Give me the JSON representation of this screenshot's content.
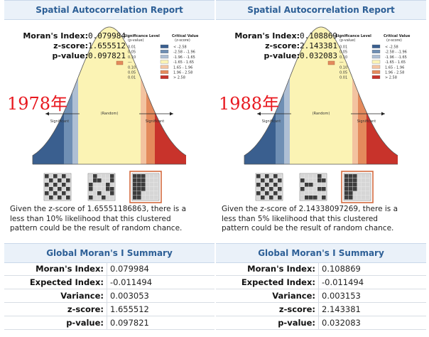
{
  "panels": [
    {
      "report_title": "Spatial Autocorrelation Report",
      "year_label": "1978年",
      "stats": [
        {
          "label": "Moran's Index:",
          "value": "0.079984"
        },
        {
          "label": "z-score:",
          "value": "1.655512"
        },
        {
          "label": "p-value:",
          "value": "0.097821"
        }
      ],
      "description_lines": [
        "Given the z-score of 1.65551186863, there is a",
        "less than 10% likelihood that this clustered",
        "pattern could be the result of random chance."
      ],
      "summary_title": "Global Moran's I Summary",
      "summary_rows": [
        {
          "label": "Moran's Index:",
          "value": "0.079984"
        },
        {
          "label": "Expected Index:",
          "value": "-0.011494"
        },
        {
          "label": "Variance:",
          "value": "0.003053"
        },
        {
          "label": "z-score:",
          "value": "1.655512"
        },
        {
          "label": "p-value:",
          "value": "0.097821"
        }
      ]
    },
    {
      "report_title": "Spatial Autocorrelation Report",
      "year_label": "1988年",
      "stats": [
        {
          "label": "Moran's Index:",
          "value": "0.108869"
        },
        {
          "label": "z-score:",
          "value": "2.143381"
        },
        {
          "label": "p-value:",
          "value": "0.032083"
        }
      ],
      "description_lines": [
        "Given the z-score of 2.14338097269, there is a",
        "less than 5% likelihood that this clustered",
        "pattern could be the result of random chance."
      ],
      "summary_title": "Global Moran's I Summary",
      "summary_rows": [
        {
          "label": "Moran's Index:",
          "value": "0.108869"
        },
        {
          "label": "Expected Index:",
          "value": "-0.011494"
        },
        {
          "label": "Variance:",
          "value": "0.003153"
        },
        {
          "label": "z-score:",
          "value": "2.143381"
        },
        {
          "label": "p-value:",
          "value": "0.032083"
        }
      ]
    }
  ],
  "figure": {
    "sig_header": [
      "Significance Level",
      "(p-value)"
    ],
    "crit_header": [
      "Critical Value",
      "(z-score)"
    ],
    "legend": [
      {
        "p": "0.01",
        "z": "< -2.58",
        "color": "#3a5f8f"
      },
      {
        "p": "0.05",
        "z": "-2.58 - -1.96",
        "color": "#6f8fb4"
      },
      {
        "p": "0.10",
        "z": "-1.96 - -1.65",
        "color": "#aebfd4"
      },
      {
        "p": "---",
        "z": "-1.65 - 1.65",
        "color": "#fbf3b4"
      },
      {
        "p": "0.10",
        "z": "1.65 - 1.96",
        "color": "#f3c3a0"
      },
      {
        "p": "0.05",
        "z": "1.96 - 2.58",
        "color": "#e48a5c"
      },
      {
        "p": "0.01",
        "z": "> 2.58",
        "color": "#c8332b"
      }
    ],
    "significant_label": "Significant",
    "random_label": "(Random)",
    "pattern_labels": [
      "Dispersed",
      "Random",
      "Clustered"
    ]
  }
}
